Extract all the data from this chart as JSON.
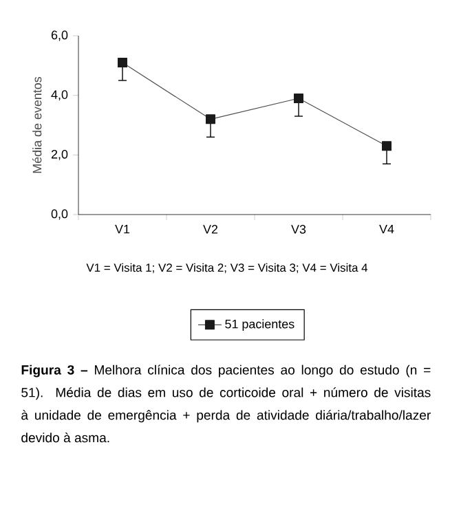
{
  "chart_data": {
    "type": "line",
    "ylabel": "Média de eventos",
    "categories": [
      "V1",
      "V2",
      "V3",
      "V4"
    ],
    "series": [
      {
        "name": "51 pacientes",
        "color": "#1a1a1a",
        "values": [
          5.1,
          3.2,
          3.9,
          2.3
        ],
        "errors": [
          [
            4.5,
            5.1
          ],
          [
            2.6,
            3.2
          ],
          [
            3.3,
            3.9
          ],
          [
            1.7,
            2.3
          ]
        ]
      }
    ],
    "ylim": [
      0,
      6
    ],
    "yticks": [
      {
        "value": 0,
        "label": "0,0"
      },
      {
        "value": 2,
        "label": "2,0"
      },
      {
        "value": 4,
        "label": "4,0"
      },
      {
        "value": 6,
        "label": "6,0"
      }
    ],
    "marker": "square",
    "line_style": "solid",
    "legend": "bottom",
    "grid": false,
    "annotations": [
      "V1 = Visita 1; V2 = Visita 2; V3 = Visita 3; V4 = Visita 4",
      "**Figura 3 –** Melhora clínica dos pacientes ao longo do estudo (n = 51). Média de dias em uso de corticoide oral + número de visitas à unidade de emergência + perda de atividade diária/trabalho/lazer devido à asma."
    ]
  }
}
